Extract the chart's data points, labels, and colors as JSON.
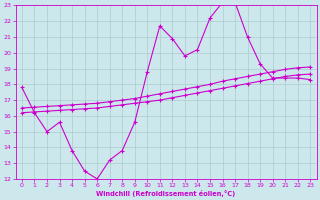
{
  "xlabel": "Windchill (Refroidissement éolien,°C)",
  "background_color": "#cce8ec",
  "line_color": "#cc00cc",
  "grid_color": "#aacccc",
  "x": [
    0,
    1,
    2,
    3,
    4,
    5,
    6,
    7,
    8,
    9,
    10,
    11,
    12,
    13,
    14,
    15,
    16,
    17,
    18,
    19,
    20,
    21,
    22,
    23
  ],
  "line1": [
    17.8,
    16.2,
    15.0,
    15.6,
    13.8,
    12.5,
    12.0,
    13.2,
    13.8,
    15.6,
    18.8,
    21.7,
    20.9,
    19.8,
    20.2,
    22.2,
    23.2,
    23.2,
    21.0,
    19.3,
    18.4,
    18.4,
    18.4,
    18.3
  ],
  "line2": [
    16.2,
    16.25,
    16.3,
    16.35,
    16.4,
    16.45,
    16.5,
    16.6,
    16.7,
    16.8,
    16.9,
    17.0,
    17.15,
    17.3,
    17.45,
    17.6,
    17.75,
    17.9,
    18.05,
    18.2,
    18.35,
    18.5,
    18.6,
    18.65
  ],
  "line3": [
    16.5,
    16.55,
    16.6,
    16.65,
    16.7,
    16.75,
    16.8,
    16.9,
    17.0,
    17.1,
    17.25,
    17.4,
    17.55,
    17.7,
    17.85,
    18.0,
    18.2,
    18.35,
    18.5,
    18.65,
    18.8,
    18.95,
    19.05,
    19.1
  ],
  "ylim": [
    12,
    23
  ],
  "xlim": [
    -0.5,
    23.5
  ],
  "yticks": [
    12,
    13,
    14,
    15,
    16,
    17,
    18,
    19,
    20,
    21,
    22,
    23
  ],
  "xticks": [
    0,
    1,
    2,
    3,
    4,
    5,
    6,
    7,
    8,
    9,
    10,
    11,
    12,
    13,
    14,
    15,
    16,
    17,
    18,
    19,
    20,
    21,
    22,
    23
  ]
}
